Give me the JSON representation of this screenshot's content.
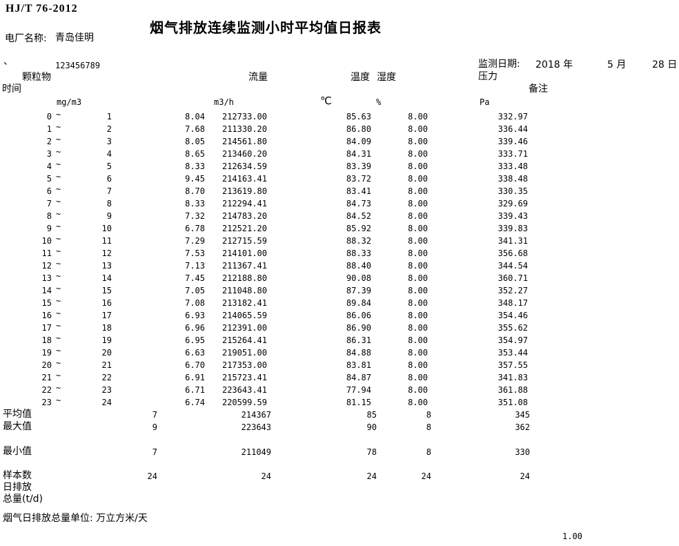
{
  "standard": "HJ/T 76-2012",
  "title": "烟气排放连续监测小时平均值日报表",
  "plant": {
    "label": "电厂名称:",
    "name": "青岛佳明"
  },
  "list_marker": "、",
  "serial": "123456789",
  "date": {
    "label": "监测日期:",
    "year": "2018 年",
    "month": "5 月",
    "day": "28 日"
  },
  "tilde": "~",
  "columns": {
    "time": "时间",
    "pm": "颗粒物",
    "flow": "流量",
    "temp": "温度",
    "hum": "湿度",
    "pressure": "压力",
    "remark": "备注"
  },
  "units": {
    "pm": "mg/m3",
    "flow": "m3/h",
    "temp": "℃",
    "hum": "%",
    "pressure": "Pa"
  },
  "rows": [
    {
      "s": "0",
      "e": "1",
      "pm": "8.04",
      "flow": "212733.00",
      "temp": "85.63",
      "hum": "8.00",
      "p": "332.97"
    },
    {
      "s": "1",
      "e": "2",
      "pm": "7.68",
      "flow": "211330.20",
      "temp": "86.80",
      "hum": "8.00",
      "p": "336.44"
    },
    {
      "s": "2",
      "e": "3",
      "pm": "8.05",
      "flow": "214561.80",
      "temp": "84.09",
      "hum": "8.00",
      "p": "339.46"
    },
    {
      "s": "3",
      "e": "4",
      "pm": "8.65",
      "flow": "213460.20",
      "temp": "84.31",
      "hum": "8.00",
      "p": "333.71"
    },
    {
      "s": "4",
      "e": "5",
      "pm": "8.33",
      "flow": "212634.59",
      "temp": "83.39",
      "hum": "8.00",
      "p": "333.48"
    },
    {
      "s": "5",
      "e": "6",
      "pm": "9.45",
      "flow": "214163.41",
      "temp": "83.72",
      "hum": "8.00",
      "p": "338.48"
    },
    {
      "s": "6",
      "e": "7",
      "pm": "8.70",
      "flow": "213619.80",
      "temp": "83.41",
      "hum": "8.00",
      "p": "330.35"
    },
    {
      "s": "7",
      "e": "8",
      "pm": "8.33",
      "flow": "212294.41",
      "temp": "84.73",
      "hum": "8.00",
      "p": "329.69"
    },
    {
      "s": "8",
      "e": "9",
      "pm": "7.32",
      "flow": "214783.20",
      "temp": "84.52",
      "hum": "8.00",
      "p": "339.43"
    },
    {
      "s": "9",
      "e": "10",
      "pm": "6.78",
      "flow": "212521.20",
      "temp": "85.92",
      "hum": "8.00",
      "p": "339.83"
    },
    {
      "s": "10",
      "e": "11",
      "pm": "7.29",
      "flow": "212715.59",
      "temp": "88.32",
      "hum": "8.00",
      "p": "341.31"
    },
    {
      "s": "11",
      "e": "12",
      "pm": "7.53",
      "flow": "214101.00",
      "temp": "88.33",
      "hum": "8.00",
      "p": "356.68"
    },
    {
      "s": "12",
      "e": "13",
      "pm": "7.13",
      "flow": "211367.41",
      "temp": "88.40",
      "hum": "8.00",
      "p": "344.54"
    },
    {
      "s": "13",
      "e": "14",
      "pm": "7.45",
      "flow": "212188.80",
      "temp": "90.08",
      "hum": "8.00",
      "p": "360.71"
    },
    {
      "s": "14",
      "e": "15",
      "pm": "7.05",
      "flow": "211048.80",
      "temp": "87.39",
      "hum": "8.00",
      "p": "352.27"
    },
    {
      "s": "15",
      "e": "16",
      "pm": "7.08",
      "flow": "213182.41",
      "temp": "89.84",
      "hum": "8.00",
      "p": "348.17"
    },
    {
      "s": "16",
      "e": "17",
      "pm": "6.93",
      "flow": "214065.59",
      "temp": "86.06",
      "hum": "8.00",
      "p": "354.46"
    },
    {
      "s": "17",
      "e": "18",
      "pm": "6.96",
      "flow": "212391.00",
      "temp": "86.90",
      "hum": "8.00",
      "p": "355.62"
    },
    {
      "s": "18",
      "e": "19",
      "pm": "6.95",
      "flow": "215264.41",
      "temp": "86.31",
      "hum": "8.00",
      "p": "354.97"
    },
    {
      "s": "19",
      "e": "20",
      "pm": "6.63",
      "flow": "219051.00",
      "temp": "84.88",
      "hum": "8.00",
      "p": "353.44"
    },
    {
      "s": "20",
      "e": "21",
      "pm": "6.70",
      "flow": "217353.00",
      "temp": "83.81",
      "hum": "8.00",
      "p": "357.55"
    },
    {
      "s": "21",
      "e": "22",
      "pm": "6.91",
      "flow": "215723.41",
      "temp": "84.87",
      "hum": "8.00",
      "p": "341.83"
    },
    {
      "s": "22",
      "e": "23",
      "pm": "6.71",
      "flow": "223643.41",
      "temp": "77.94",
      "hum": "8.00",
      "p": "361.88"
    },
    {
      "s": "23",
      "e": "24",
      "pm": "6.74",
      "flow": "220599.59",
      "temp": "81.15",
      "hum": "8.00",
      "p": "351.08"
    }
  ],
  "summary": [
    {
      "label": "平均值",
      "pm": "7",
      "flow": "214367",
      "temp": "85",
      "hum": "8",
      "p": "345"
    },
    {
      "label": "最大值",
      "pm": "9",
      "flow": "223643",
      "temp": "90",
      "hum": "8",
      "p": "362"
    },
    {
      "label": "最小值",
      "pm": "7",
      "flow": "211049",
      "temp": "78",
      "hum": "8",
      "p": "330"
    },
    {
      "label": "样本数",
      "pm": "24",
      "flow": "24",
      "temp": "24",
      "hum": "24",
      "p": "24"
    }
  ],
  "daily_emission": {
    "line1": "日排放",
    "line2": "总量(t/d)"
  },
  "footer": {
    "unit_note": "烟气日排放总量单位: 万立方米/天",
    "page": "1.00"
  }
}
